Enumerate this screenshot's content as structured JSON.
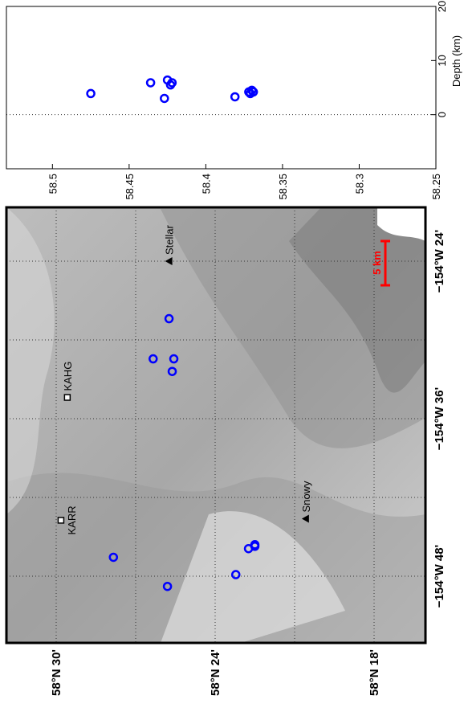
{
  "map": {
    "lat_labels": [
      {
        "value": 58.5,
        "label": "58°N 30'"
      },
      {
        "value": 58.4,
        "label": "58°N 24'"
      },
      {
        "value": 58.3,
        "label": "58°N 18'"
      }
    ],
    "lat_grid": [
      58.5,
      58.45,
      58.4,
      58.35,
      58.3
    ],
    "lon_labels": [
      {
        "value": -154.4,
        "label": "−154°W 24'"
      },
      {
        "value": -154.6,
        "label": "−154°W 36'"
      },
      {
        "value": -154.8,
        "label": "−154°W 48'"
      }
    ],
    "lon_grid": [
      -154.4,
      -154.5,
      -154.6,
      -154.7,
      -154.8
    ],
    "stations": [
      {
        "name": "KARR",
        "lat": 58.497,
        "lon": -154.729
      },
      {
        "name": "KAHG",
        "lat": 58.493,
        "lon": -154.573
      }
    ],
    "volcanoes": [
      {
        "name": "Stellar",
        "lat": 58.429,
        "lon": -154.4
      },
      {
        "name": "Snowy",
        "lat": 58.343,
        "lon": -154.727
      }
    ],
    "scale_bar": "5 km",
    "events": {
      "color": "#0000ff",
      "lat": [
        58.464,
        58.43,
        58.439,
        58.429,
        58.426,
        58.427,
        58.387,
        58.379,
        58.375,
        58.375
      ],
      "lon": [
        -154.776,
        -154.813,
        -154.524,
        -154.473,
        -154.524,
        -154.54,
        -154.798,
        -154.765,
        -154.76,
        -154.762
      ]
    }
  },
  "depth_plot": {
    "ylabel": "Depth (km)",
    "xlim": [
      58.53,
      58.25
    ],
    "xticks": [
      58.5,
      58.45,
      58.4,
      58.35,
      58.3,
      58.25
    ],
    "ylim": [
      -10,
      20
    ],
    "yticks": [
      0,
      10,
      20
    ],
    "color": "#0000ff",
    "lat": [
      58.475,
      58.436,
      58.427,
      58.425,
      58.423,
      58.422,
      58.381,
      58.372,
      58.371,
      58.37,
      58.369
    ],
    "depth": [
      3.9,
      5.9,
      3.0,
      6.4,
      5.5,
      5.9,
      3.3,
      4.2,
      3.9,
      4.5,
      4.2
    ]
  }
}
